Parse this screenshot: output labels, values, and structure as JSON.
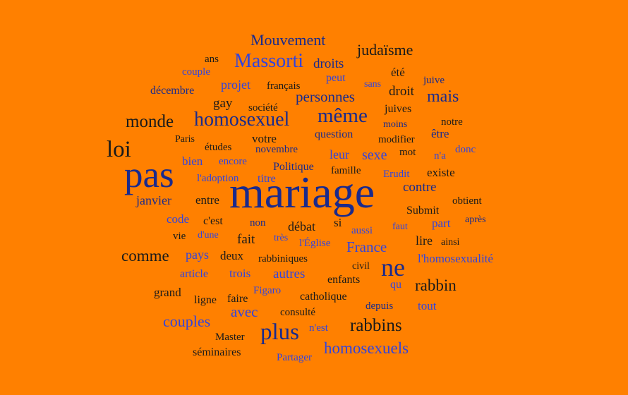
{
  "colors": {
    "background": "#ff8000",
    "black": "#1a1a1a",
    "navy": "#1a2a8c",
    "blue": "#3344dd"
  },
  "cloud": {
    "words": [
      {
        "text": "Mouvement",
        "tone": "navy"
      },
      {
        "text": "ans",
        "tone": "black"
      },
      {
        "text": "Massorti",
        "tone": "blue"
      },
      {
        "text": "droits",
        "tone": "navy"
      },
      {
        "text": "judaïsme",
        "tone": "black"
      },
      {
        "text": "couple",
        "tone": "blue"
      },
      {
        "text": "peut",
        "tone": "blue"
      },
      {
        "text": "été",
        "tone": "black"
      },
      {
        "text": "juive",
        "tone": "navy"
      },
      {
        "text": "décembre",
        "tone": "navy"
      },
      {
        "text": "projet",
        "tone": "blue"
      },
      {
        "text": "français",
        "tone": "black"
      },
      {
        "text": "sans",
        "tone": "blue"
      },
      {
        "text": "droit",
        "tone": "black"
      },
      {
        "text": "mais",
        "tone": "navy"
      },
      {
        "text": "gay",
        "tone": "black"
      },
      {
        "text": "personnes",
        "tone": "navy"
      },
      {
        "text": "société",
        "tone": "black"
      },
      {
        "text": "juives",
        "tone": "black"
      },
      {
        "text": "monde",
        "tone": "black"
      },
      {
        "text": "homosexuel",
        "tone": "navy"
      },
      {
        "text": "même",
        "tone": "navy"
      },
      {
        "text": "moins",
        "tone": "navy"
      },
      {
        "text": "notre",
        "tone": "black"
      },
      {
        "text": "question",
        "tone": "navy"
      },
      {
        "text": "Paris",
        "tone": "black"
      },
      {
        "text": "votre",
        "tone": "black"
      },
      {
        "text": "modifier",
        "tone": "black"
      },
      {
        "text": "être",
        "tone": "navy"
      },
      {
        "text": "loi",
        "tone": "black"
      },
      {
        "text": "études",
        "tone": "black"
      },
      {
        "text": "novembre",
        "tone": "navy"
      },
      {
        "text": "leur",
        "tone": "blue"
      },
      {
        "text": "sexe",
        "tone": "blue"
      },
      {
        "text": "mot",
        "tone": "black"
      },
      {
        "text": "donc",
        "tone": "blue"
      },
      {
        "text": "n'a",
        "tone": "blue"
      },
      {
        "text": "bien",
        "tone": "blue"
      },
      {
        "text": "encore",
        "tone": "blue"
      },
      {
        "text": "pas",
        "tone": "navy"
      },
      {
        "text": "Politique",
        "tone": "navy"
      },
      {
        "text": "famille",
        "tone": "black"
      },
      {
        "text": "Erudit",
        "tone": "blue"
      },
      {
        "text": "existe",
        "tone": "black"
      },
      {
        "text": "l'adoption",
        "tone": "blue"
      },
      {
        "text": "titre",
        "tone": "blue"
      },
      {
        "text": "mariage",
        "tone": "navy"
      },
      {
        "text": "contre",
        "tone": "navy"
      },
      {
        "text": "janvier",
        "tone": "navy"
      },
      {
        "text": "entre",
        "tone": "black"
      },
      {
        "text": "obtient",
        "tone": "black"
      },
      {
        "text": "Submit",
        "tone": "black"
      },
      {
        "text": "code",
        "tone": "blue"
      },
      {
        "text": "c'est",
        "tone": "black"
      },
      {
        "text": "après",
        "tone": "navy"
      },
      {
        "text": "non",
        "tone": "navy"
      },
      {
        "text": "si",
        "tone": "black"
      },
      {
        "text": "part",
        "tone": "blue"
      },
      {
        "text": "vie",
        "tone": "black"
      },
      {
        "text": "d'une",
        "tone": "blue"
      },
      {
        "text": "débat",
        "tone": "black"
      },
      {
        "text": "aussi",
        "tone": "blue"
      },
      {
        "text": "faut",
        "tone": "blue"
      },
      {
        "text": "fait",
        "tone": "black"
      },
      {
        "text": "très",
        "tone": "blue"
      },
      {
        "text": "lire",
        "tone": "black"
      },
      {
        "text": "ainsi",
        "tone": "black"
      },
      {
        "text": "l'Église",
        "tone": "blue"
      },
      {
        "text": "France",
        "tone": "blue"
      },
      {
        "text": "comme",
        "tone": "black"
      },
      {
        "text": "pays",
        "tone": "blue"
      },
      {
        "text": "deux",
        "tone": "black"
      },
      {
        "text": "rabbiniques",
        "tone": "black"
      },
      {
        "text": "ne",
        "tone": "navy"
      },
      {
        "text": "l'homosexualité",
        "tone": "blue"
      },
      {
        "text": "civil",
        "tone": "black"
      },
      {
        "text": "article",
        "tone": "blue"
      },
      {
        "text": "trois",
        "tone": "blue"
      },
      {
        "text": "autres",
        "tone": "blue"
      },
      {
        "text": "enfants",
        "tone": "black"
      },
      {
        "text": "grand",
        "tone": "black"
      },
      {
        "text": "qu",
        "tone": "blue"
      },
      {
        "text": "rabbin",
        "tone": "black"
      },
      {
        "text": "Figaro",
        "tone": "blue"
      },
      {
        "text": "ligne",
        "tone": "black"
      },
      {
        "text": "faire",
        "tone": "black"
      },
      {
        "text": "catholique",
        "tone": "black"
      },
      {
        "text": "avec",
        "tone": "blue"
      },
      {
        "text": "consulté",
        "tone": "black"
      },
      {
        "text": "depuis",
        "tone": "navy"
      },
      {
        "text": "tout",
        "tone": "blue"
      },
      {
        "text": "couples",
        "tone": "blue"
      },
      {
        "text": "plus",
        "tone": "navy"
      },
      {
        "text": "rabbins",
        "tone": "black"
      },
      {
        "text": "n'est",
        "tone": "blue"
      },
      {
        "text": "Master",
        "tone": "black"
      },
      {
        "text": "homosexuels",
        "tone": "blue"
      },
      {
        "text": "séminaires",
        "tone": "black"
      },
      {
        "text": "Partager",
        "tone": "blue"
      }
    ]
  }
}
